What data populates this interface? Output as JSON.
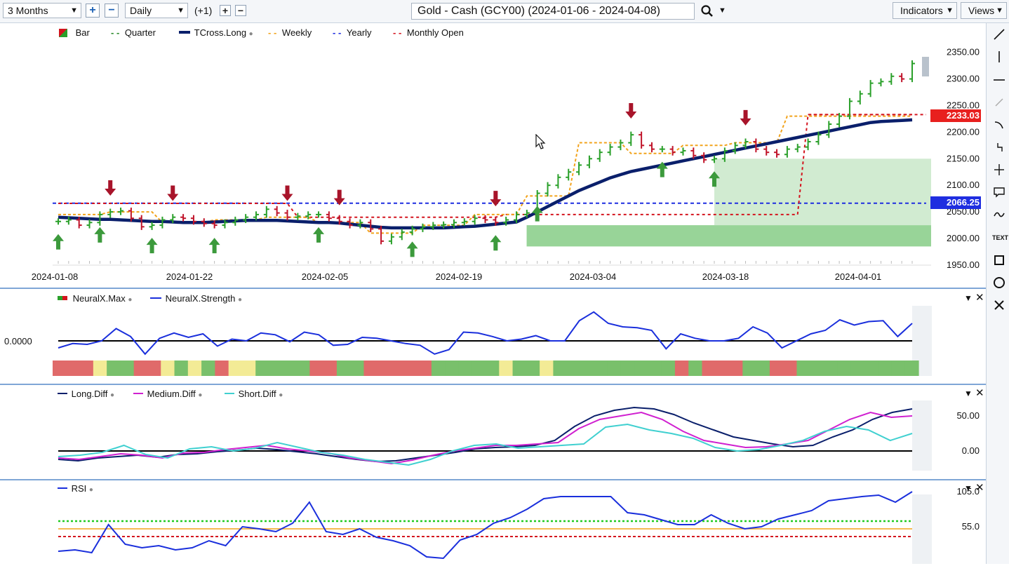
{
  "toolbar": {
    "period": "3 Months",
    "interval": "Daily",
    "offset": "(+1)",
    "title": "Gold - Cash (GCY00) (2024-01-06 - 2024-04-08)",
    "indicators": "Indicators",
    "views": "Views"
  },
  "main_legend": {
    "bar": "Bar",
    "quarter": "Quarter",
    "tcross": "TCross.Long",
    "weekly": "Weekly",
    "yearly": "Yearly",
    "monthly_open": "Monthly Open"
  },
  "main_price_labels": {
    "current": "2233.03",
    "yearly": "2066.25"
  },
  "neural_legend": {
    "max": "NeuralX.Max",
    "strength": "NeuralX.Strength",
    "zero_label": "0.0000"
  },
  "diff_legend": {
    "long": "Long.Diff",
    "medium": "Medium.Diff",
    "short": "Short.Diff"
  },
  "rsi_legend": {
    "rsi": "RSI"
  },
  "colors": {
    "up": "#2aa02a",
    "down": "#c0142a",
    "tcross": "#0a1f6b",
    "weekly": "#f2a31b",
    "yearly": "#1f2ee0",
    "monthly": "#d4141e",
    "quarter": "#2a8a2a",
    "strength": "#1a2fdc",
    "medium": "#d020d0",
    "short": "#40d0d0"
  },
  "chart_data": [
    {
      "type": "line",
      "name": "price",
      "title": "Gold - Cash (GCY00) (2024-01-06 - 2024-04-08)",
      "xlabel": "",
      "ylabel": "",
      "x_tick_labels": [
        "2024-01-08",
        "2024-01-22",
        "2024-02-05",
        "2024-02-19",
        "2024-03-04",
        "2024-03-18",
        "2024-04-01"
      ],
      "y_tick_labels": [
        "1950.00",
        "2000.00",
        "2050.00",
        "2100.00",
        "2150.00",
        "2200.00",
        "2250.00",
        "2300.00",
        "2350.00"
      ],
      "ylim": [
        1942,
        2368
      ],
      "closes": [
        2032,
        2035,
        2025,
        2030,
        2045,
        2050,
        2052,
        2038,
        2022,
        2025,
        2035,
        2040,
        2038,
        2032,
        2028,
        2025,
        2030,
        2035,
        2040,
        2045,
        2055,
        2048,
        2040,
        2042,
        2045,
        2045,
        2038,
        2032,
        2025,
        2030,
        2018,
        1995,
        2003,
        2012,
        2018,
        2022,
        2025,
        2026,
        2030,
        2032,
        2038,
        2035,
        2030,
        2035,
        2045,
        2048,
        2085,
        2100,
        2115,
        2125,
        2138,
        2150,
        2162,
        2172,
        2180,
        2195,
        2175,
        2168,
        2168,
        2162,
        2165,
        2156,
        2148,
        2150,
        2165,
        2175,
        2182,
        2168,
        2162,
        2158,
        2168,
        2172,
        2182,
        2195,
        2215,
        2230,
        2258,
        2272,
        2292,
        2295,
        2305,
        2300,
        2329
      ],
      "series": [
        {
          "name": "TCross.Long",
          "values": [
            2040,
            2039,
            2038,
            2037,
            2036,
            2036,
            2035,
            2034,
            2033,
            2032,
            2032,
            2031,
            2030,
            2030,
            2030,
            2031,
            2032,
            2033,
            2034,
            2034,
            2034,
            2034,
            2033,
            2032,
            2031,
            2030,
            2030,
            2029,
            2027,
            2025,
            2023,
            2021,
            2020,
            2020,
            2020,
            2020,
            2020,
            2020,
            2021,
            2022,
            2023,
            2025,
            2027,
            2029,
            2031,
            2040,
            2050,
            2060,
            2070,
            2080,
            2090,
            2098,
            2106,
            2114,
            2120,
            2126,
            2130,
            2134,
            2138,
            2142,
            2146,
            2150,
            2154,
            2158,
            2162,
            2166,
            2170,
            2174,
            2178,
            2182,
            2186,
            2190,
            2194,
            2198,
            2202,
            2206,
            2210,
            2214,
            2218,
            2220,
            2221,
            2222,
            2223
          ]
        },
        {
          "name": "Weekly",
          "values": [
            2045,
            2045,
            2045,
            2045,
            2045,
            2050,
            2050,
            2050,
            2050,
            2050,
            2030,
            2030,
            2030,
            2030,
            2030,
            2035,
            2035,
            2035,
            2035,
            2035,
            2040,
            2040,
            2040,
            2040,
            2040,
            2030,
            2030,
            2030,
            2030,
            2030,
            2010,
            2010,
            2010,
            2010,
            2010,
            2025,
            2025,
            2025,
            2025,
            2025,
            2045,
            2045,
            2045,
            2045,
            2045,
            2080,
            2080,
            2080,
            2080,
            2080,
            2180,
            2180,
            2180,
            2180,
            2180,
            2160,
            2160,
            2160,
            2160,
            2160,
            2175,
            2175,
            2175,
            2175,
            2175,
            2180,
            2180,
            2180,
            2180,
            2180,
            2230,
            2230,
            2230,
            2230,
            2230,
            2230,
            2230,
            2230,
            2230,
            2230,
            2230,
            2230,
            2230
          ]
        },
        {
          "name": "Yearly",
          "values": [
            2066.25,
            2066.25
          ]
        },
        {
          "name": "Monthly Open",
          "values": [
            2066,
            2066,
            2066,
            2066,
            2066,
            2066,
            2066,
            2066,
            2066,
            2066,
            2066,
            2066,
            2066,
            2066,
            2066,
            2066,
            2066,
            2066,
            2066,
            2066,
            2066,
            2066,
            2066,
            2040,
            2040,
            2040,
            2040,
            2040,
            2040,
            2040,
            2040,
            2040,
            2040,
            2040,
            2040,
            2040,
            2040,
            2040,
            2040,
            2040,
            2040,
            2040,
            2040,
            2045,
            2045,
            2045,
            2045,
            2045,
            2045,
            2045,
            2045,
            2045,
            2045,
            2045,
            2045,
            2045,
            2045,
            2045,
            2045,
            2045,
            2045,
            2045,
            2045,
            2045,
            2045,
            2045,
            2045,
            2045,
            2045,
            2045,
            2045,
            2045,
            2233,
            2233,
            2233,
            2233,
            2233,
            2233,
            2233,
            2233,
            2233,
            2233,
            2233
          ]
        }
      ],
      "last_value_labels": [
        "2233.03",
        "2066.25"
      ]
    },
    {
      "type": "line",
      "name": "neuralx",
      "series": [
        {
          "name": "NeuralX.Strength",
          "values": [
            -0.8,
            -0.3,
            -0.4,
            0.0,
            1.4,
            0.5,
            -1.5,
            0.3,
            0.9,
            0.4,
            0.8,
            -0.6,
            0.2,
            0.0,
            0.9,
            0.7,
            -0.1,
            1.0,
            0.7,
            -0.5,
            -0.4,
            0.4,
            0.3,
            0.0,
            -0.3,
            -0.5,
            -1.5,
            -1.0,
            1.0,
            0.9,
            0.5,
            0.0,
            0.2,
            0.6,
            0.0,
            0.0,
            2.3,
            3.3,
            2.0,
            1.6,
            1.5,
            1.2,
            -0.9,
            0.8,
            0.3,
            0.0,
            0.0,
            0.3,
            1.6,
            0.9,
            -0.8,
            0.0,
            0.8,
            1.2,
            2.4,
            1.8,
            2.2,
            2.3,
            0.5,
            2.0
          ]
        }
      ],
      "max_colors": [
        "red",
        "red",
        "red",
        "yellow",
        "green",
        "green",
        "red",
        "red",
        "yellow",
        "green",
        "yellow",
        "green",
        "red",
        "yellow",
        "yellow",
        "green",
        "green",
        "green",
        "green",
        "red",
        "red",
        "green",
        "green",
        "red",
        "red",
        "red",
        "red",
        "red",
        "green",
        "green",
        "green",
        "green",
        "green",
        "yellow",
        "green",
        "green",
        "yellow",
        "green",
        "green",
        "green",
        "green",
        "green",
        "green",
        "green",
        "green",
        "green",
        "red",
        "green",
        "red",
        "red",
        "red",
        "green",
        "green",
        "red",
        "red",
        "green",
        "green",
        "green",
        "green",
        "green",
        "green",
        "green",
        "green",
        "green"
      ],
      "zero_label": "0.0000"
    },
    {
      "type": "line",
      "name": "diff",
      "y_tick_labels": [
        "0.00",
        "50.00"
      ],
      "series": [
        {
          "name": "Long.Diff",
          "values": [
            -12,
            -14,
            -10,
            -8,
            -6,
            -9,
            -5,
            -4,
            -1,
            1,
            4,
            2,
            -1,
            -4,
            -8,
            -12,
            -15,
            -14,
            -10,
            -6,
            -2,
            3,
            5,
            6,
            8,
            15,
            35,
            50,
            58,
            62,
            60,
            52,
            40,
            30,
            20,
            15,
            10,
            6,
            8,
            20,
            30,
            45,
            55,
            60
          ]
        },
        {
          "name": "Medium.Diff",
          "values": [
            -10,
            -12,
            -8,
            -4,
            -6,
            -10,
            -3,
            -2,
            2,
            5,
            8,
            3,
            0,
            -3,
            -10,
            -14,
            -18,
            -13,
            -6,
            0,
            4,
            8,
            8,
            10,
            12,
            32,
            45,
            50,
            55,
            45,
            28,
            15,
            10,
            5,
            6,
            10,
            15,
            30,
            45,
            55,
            48,
            50
          ]
        },
        {
          "name": "Short.Diff",
          "values": [
            -8,
            -6,
            -2,
            8,
            -5,
            -10,
            3,
            6,
            0,
            4,
            12,
            5,
            -2,
            -6,
            -12,
            -16,
            -20,
            -12,
            0,
            8,
            10,
            4,
            6,
            8,
            10,
            34,
            38,
            30,
            25,
            18,
            5,
            0,
            2,
            8,
            15,
            28,
            35,
            30,
            15,
            25
          ]
        }
      ]
    },
    {
      "type": "line",
      "name": "rsi",
      "y_tick_labels": [
        "55.0",
        "105.0"
      ],
      "series": [
        {
          "name": "RSI",
          "values": [
            20,
            22,
            18,
            58,
            30,
            25,
            28,
            22,
            25,
            35,
            28,
            55,
            52,
            48,
            60,
            90,
            48,
            44,
            52,
            40,
            35,
            28,
            12,
            10,
            36,
            44,
            60,
            68,
            80,
            95,
            98,
            98,
            98,
            98,
            75,
            72,
            65,
            58,
            58,
            72,
            60,
            52,
            55,
            66,
            72,
            78,
            92,
            95,
            98,
            100,
            90,
            105
          ]
        }
      ],
      "lines": [
        {
          "name": "upper",
          "value": 63
        },
        {
          "name": "middle",
          "value": 52
        },
        {
          "name": "lower",
          "value": 41
        }
      ]
    }
  ]
}
